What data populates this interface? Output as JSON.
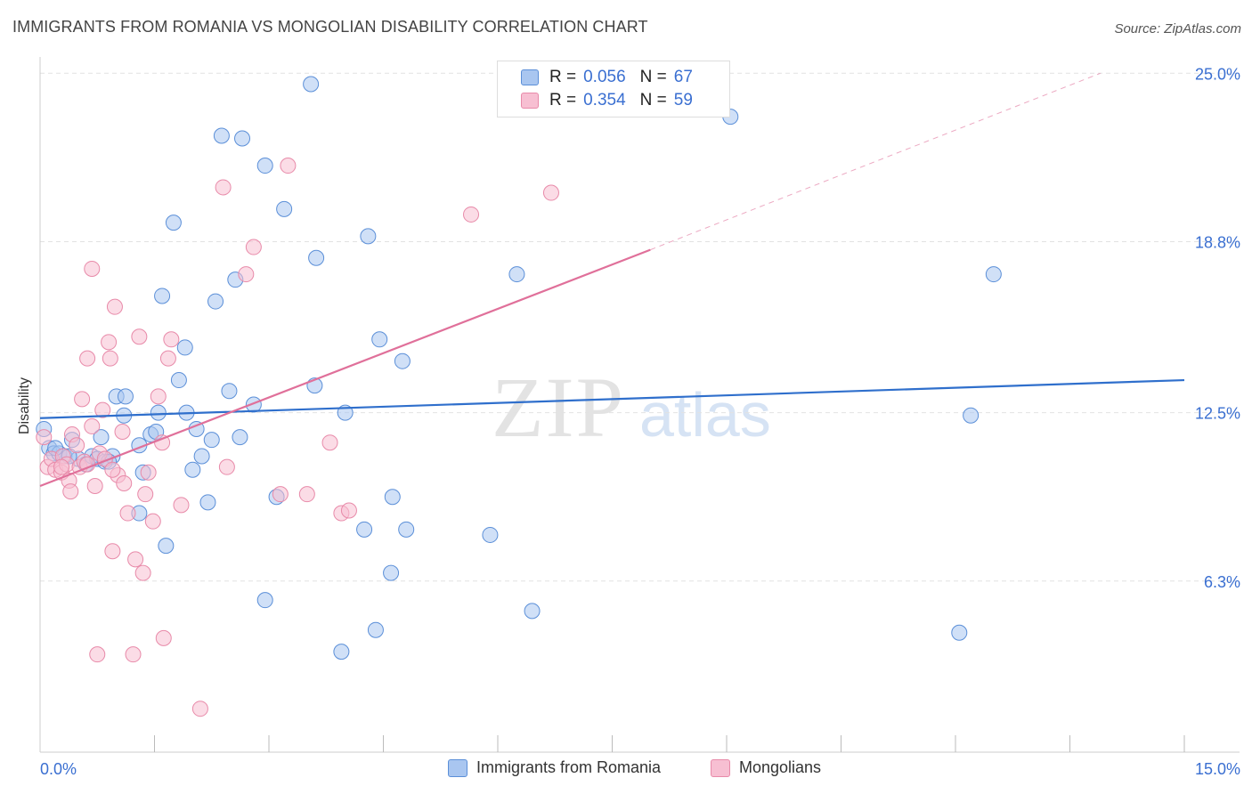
{
  "title": "IMMIGRANTS FROM ROMANIA VS MONGOLIAN DISABILITY CORRELATION CHART",
  "source": "Source: ZipAtlas.com",
  "watermark": {
    "zip": "ZIP",
    "atlas": "atlas"
  },
  "legend": {
    "rows": [
      {
        "r_label": "R =",
        "r_value": "0.056",
        "n_label": "N =",
        "n_value": "67",
        "color": "#a9c6f0",
        "border": "#5b8fd8"
      },
      {
        "r_label": "R =",
        "r_value": "0.354",
        "n_label": "N =",
        "n_value": "59",
        "color": "#f7bfd2",
        "border": "#e88aa9"
      }
    ]
  },
  "bottom_legend": [
    {
      "label": "Immigrants from Romania",
      "color": "#a9c6f0",
      "border": "#5b8fd8"
    },
    {
      "label": "Mongolians",
      "color": "#f7bfd2",
      "border": "#e88aa9"
    }
  ],
  "chart_data": {
    "type": "scatter",
    "title": "IMMIGRANTS FROM ROMANIA VS MONGOLIAN DISABILITY CORRELATION CHART",
    "xlabel": "",
    "ylabel": "Disability",
    "xlim": [
      0,
      15
    ],
    "ylim": [
      0,
      25.6
    ],
    "x_tick_labels": [
      "0.0%",
      "15.0%"
    ],
    "y_ticks": [
      6.3,
      12.5,
      18.8,
      25.0
    ],
    "y_tick_labels": [
      "6.3%",
      "12.5%",
      "18.8%",
      "25.0%"
    ],
    "grid": true,
    "series": [
      {
        "name": "Immigrants from Romania",
        "color": "#5b8fd8",
        "fill": "#a9c6f0",
        "trend": {
          "x": [
            0,
            15
          ],
          "y": [
            12.3,
            13.7
          ],
          "style": "solid",
          "color": "#2f6fcc"
        },
        "points": [
          [
            0.05,
            11.9
          ],
          [
            0.12,
            11.2
          ],
          [
            0.18,
            11.0
          ],
          [
            0.25,
            11.0
          ],
          [
            0.32,
            10.9
          ],
          [
            0.42,
            11.5
          ],
          [
            0.5,
            10.8
          ],
          [
            0.6,
            10.6
          ],
          [
            0.68,
            10.9
          ],
          [
            0.75,
            10.8
          ],
          [
            0.85,
            10.7
          ],
          [
            0.95,
            10.9
          ],
          [
            0.8,
            11.6
          ],
          [
            1.0,
            13.1
          ],
          [
            1.12,
            13.1
          ],
          [
            1.1,
            12.4
          ],
          [
            1.3,
            11.3
          ],
          [
            1.35,
            10.3
          ],
          [
            1.45,
            11.7
          ],
          [
            1.52,
            11.8
          ],
          [
            1.55,
            12.5
          ],
          [
            1.6,
            16.8
          ],
          [
            1.65,
            7.6
          ],
          [
            1.75,
            19.5
          ],
          [
            1.82,
            13.7
          ],
          [
            1.9,
            14.9
          ],
          [
            1.92,
            12.5
          ],
          [
            2.0,
            10.4
          ],
          [
            2.05,
            11.9
          ],
          [
            2.12,
            10.9
          ],
          [
            2.2,
            9.2
          ],
          [
            2.25,
            11.5
          ],
          [
            2.3,
            16.6
          ],
          [
            2.38,
            22.7
          ],
          [
            2.48,
            13.3
          ],
          [
            2.56,
            17.4
          ],
          [
            2.62,
            11.6
          ],
          [
            2.65,
            22.6
          ],
          [
            2.8,
            12.8
          ],
          [
            2.95,
            5.6
          ],
          [
            2.95,
            21.6
          ],
          [
            3.1,
            9.4
          ],
          [
            3.2,
            20.0
          ],
          [
            3.55,
            24.6
          ],
          [
            3.6,
            13.5
          ],
          [
            3.62,
            18.2
          ],
          [
            3.95,
            3.7
          ],
          [
            4.0,
            12.5
          ],
          [
            4.25,
            8.2
          ],
          [
            4.3,
            19.0
          ],
          [
            4.4,
            4.5
          ],
          [
            4.45,
            15.2
          ],
          [
            4.6,
            6.6
          ],
          [
            4.62,
            9.4
          ],
          [
            4.75,
            14.4
          ],
          [
            4.8,
            8.2
          ],
          [
            5.9,
            8.0
          ],
          [
            6.25,
            17.6
          ],
          [
            6.45,
            5.2
          ],
          [
            9.05,
            23.4
          ],
          [
            12.05,
            4.4
          ],
          [
            12.2,
            12.4
          ],
          [
            12.5,
            17.6
          ],
          [
            1.3,
            8.8
          ],
          [
            0.2,
            11.2
          ],
          [
            0.9,
            10.7
          ],
          [
            0.38,
            10.9
          ]
        ]
      },
      {
        "name": "Mongolians",
        "color": "#e88aa9",
        "fill": "#f7bfd2",
        "trend": {
          "x": [
            0,
            8.0
          ],
          "y": [
            9.8,
            18.5
          ],
          "style": "solid",
          "color": "#e0709a",
          "extension": {
            "x": [
              8.0,
              13.9
            ],
            "y": [
              18.5,
              25.0
            ],
            "style": "dashed"
          }
        },
        "points": [
          [
            0.05,
            11.6
          ],
          [
            0.1,
            10.5
          ],
          [
            0.15,
            10.8
          ],
          [
            0.2,
            10.4
          ],
          [
            0.28,
            10.3
          ],
          [
            0.3,
            10.9
          ],
          [
            0.35,
            10.6
          ],
          [
            0.38,
            10.0
          ],
          [
            0.42,
            11.7
          ],
          [
            0.48,
            11.3
          ],
          [
            0.52,
            10.5
          ],
          [
            0.58,
            10.7
          ],
          [
            0.62,
            10.6
          ],
          [
            0.68,
            12.0
          ],
          [
            0.62,
            14.5
          ],
          [
            0.68,
            17.8
          ],
          [
            0.72,
            9.8
          ],
          [
            0.75,
            3.6
          ],
          [
            0.78,
            11.0
          ],
          [
            0.82,
            12.6
          ],
          [
            0.85,
            10.8
          ],
          [
            0.9,
            15.1
          ],
          [
            0.92,
            14.5
          ],
          [
            0.95,
            7.4
          ],
          [
            0.98,
            16.4
          ],
          [
            1.02,
            10.2
          ],
          [
            1.08,
            11.8
          ],
          [
            1.1,
            9.9
          ],
          [
            1.15,
            8.8
          ],
          [
            1.22,
            3.6
          ],
          [
            1.25,
            7.1
          ],
          [
            1.3,
            15.3
          ],
          [
            1.35,
            6.6
          ],
          [
            1.38,
            9.5
          ],
          [
            1.42,
            10.3
          ],
          [
            1.48,
            8.5
          ],
          [
            1.55,
            13.1
          ],
          [
            1.6,
            11.4
          ],
          [
            1.62,
            4.2
          ],
          [
            1.68,
            14.5
          ],
          [
            1.72,
            15.2
          ],
          [
            1.85,
            9.1
          ],
          [
            2.1,
            1.6
          ],
          [
            2.4,
            20.8
          ],
          [
            2.45,
            10.5
          ],
          [
            2.7,
            17.6
          ],
          [
            2.8,
            18.6
          ],
          [
            3.15,
            9.5
          ],
          [
            3.25,
            21.6
          ],
          [
            3.5,
            9.5
          ],
          [
            3.8,
            11.4
          ],
          [
            3.95,
            8.8
          ],
          [
            4.05,
            8.9
          ],
          [
            5.65,
            19.8
          ],
          [
            6.7,
            20.6
          ],
          [
            0.28,
            10.5
          ],
          [
            0.55,
            13.0
          ],
          [
            0.4,
            9.6
          ],
          [
            0.95,
            10.4
          ]
        ]
      }
    ]
  }
}
